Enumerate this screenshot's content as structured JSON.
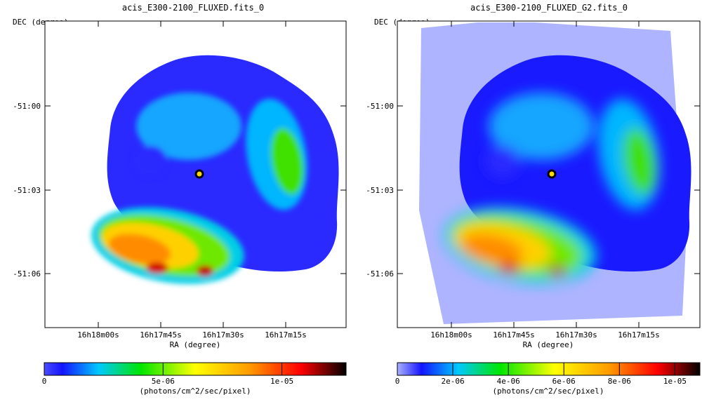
{
  "chart_data": [
    {
      "type": "heatmap",
      "title": "acis_E300-2100_FLUXED.fits_0",
      "xlabel": "RA (degree)",
      "ylabel": "DEC (degree)",
      "x_ticks": [
        "16h18m00s",
        "16h17m45s",
        "16h17m30s",
        "16h17m15s"
      ],
      "y_ticks": [
        "-51:00",
        "-51:03",
        "-51:06"
      ],
      "colorbar": {
        "label": "(photons/cm^2/sec/pixel)",
        "ticks": [
          {
            "value": 0,
            "label": "0"
          },
          {
            "value": 5e-06,
            "label": "5e-06"
          },
          {
            "value": 1e-05,
            "label": "1e-05"
          }
        ],
        "range": [
          0,
          1.27e-05
        ],
        "scale": "linear"
      },
      "colormap": [
        "#1414ff",
        "#00c8ff",
        "#00e600",
        "#ffff00",
        "#ff9b00",
        "#ff0000",
        "#000000"
      ]
    },
    {
      "type": "heatmap",
      "title": "acis_E300-2100_FLUXED_G2.fits_0",
      "xlabel": "RA (degree)",
      "ylabel": "DEC (degree)",
      "x_ticks": [
        "16h18m00s",
        "16h17m45s",
        "16h17m30s",
        "16h17m15s"
      ],
      "y_ticks": [
        "-51:00",
        "-51:03",
        "-51:06"
      ],
      "colorbar": {
        "label": "(photons/cm^2/sec/pixel)",
        "ticks": [
          {
            "value": 0,
            "label": "0"
          },
          {
            "value": 2e-06,
            "label": "2e-06"
          },
          {
            "value": 4e-06,
            "label": "4e-06"
          },
          {
            "value": 6e-06,
            "label": "6e-06"
          },
          {
            "value": 8e-06,
            "label": "8e-06"
          },
          {
            "value": 1e-05,
            "label": "1e-05"
          }
        ],
        "range": [
          0,
          1.09e-05
        ],
        "scale": "linear"
      },
      "colormap": [
        "#aab0ff",
        "#1414ff",
        "#00c8ff",
        "#00e600",
        "#ffff00",
        "#ff9b00",
        "#ff0000",
        "#000000"
      ]
    }
  ]
}
